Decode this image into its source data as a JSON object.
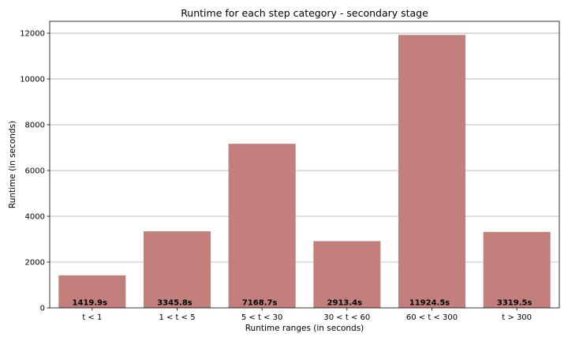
{
  "chart_data": {
    "type": "bar",
    "title": "Runtime for each step category - secondary stage",
    "xlabel": "Runtime ranges (in seconds)",
    "ylabel": "Runtime (in seconds)",
    "categories": [
      "t < 1",
      "1 < t < 5",
      "5 < t < 30",
      "30 < t < 60",
      "60 < t < 300",
      "t > 300"
    ],
    "values": [
      1419.9,
      3345.8,
      7168.7,
      2913.4,
      11924.5,
      3319.5
    ],
    "data_labels": [
      "1419.9s",
      "3345.8s",
      "7168.7s",
      "2913.4s",
      "11924.5s",
      "3319.5s"
    ],
    "ylim": [
      0,
      12520
    ],
    "yticks": [
      0,
      2000,
      4000,
      6000,
      8000,
      10000,
      12000
    ],
    "grid": "horizontal",
    "bar_color": "#c27f7c",
    "legend": "none"
  }
}
